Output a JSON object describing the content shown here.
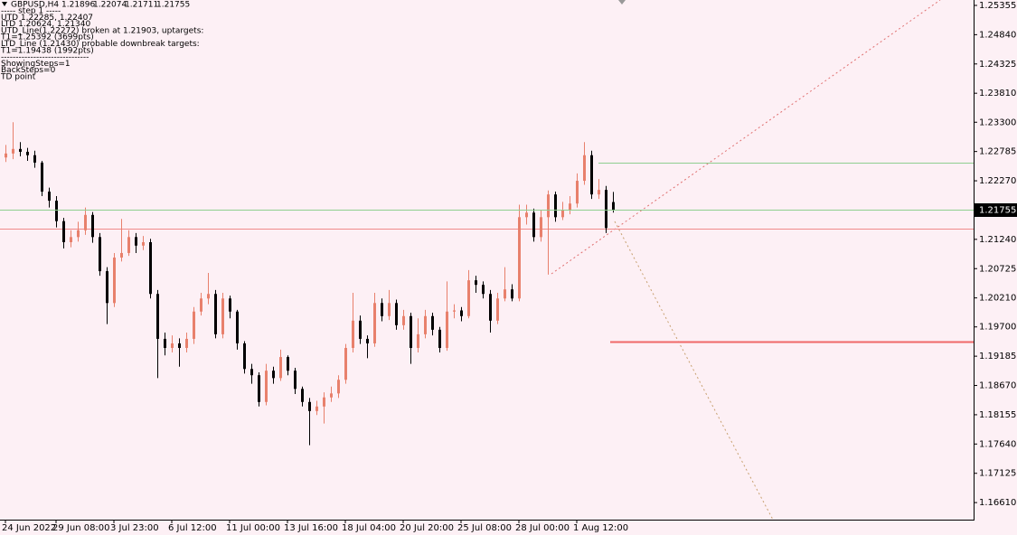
{
  "chart_data": {
    "type": "candlestick",
    "symbol": "GBPUSD,H4",
    "info_lines": [
      "----- step 1 -----",
      "UTD 1.22285, 1.22407",
      "LTD 1.20624, 1.21340",
      "UTD_Line(1.22272) broken at 1.21903, uptargets:",
      "T1=1.25392 (3699pts)",
      "LTD_Line (1.21430) probable downbreak targets:",
      "T1=1.19438 (1992pts)",
      "------------------------------",
      "ShowingSteps=1",
      "BackSteps=0",
      "TD point"
    ],
    "categories": [
      "24 Jun 2022",
      null,
      null,
      null,
      null,
      null,
      null,
      "29 Jun 08:00",
      null,
      null,
      null,
      null,
      null,
      null,
      null,
      "3 Jul 23:00",
      null,
      null,
      null,
      null,
      null,
      null,
      null,
      "6 Jul 12:00",
      null,
      null,
      null,
      null,
      null,
      null,
      null,
      "11 Jul 00:00",
      null,
      null,
      null,
      null,
      null,
      null,
      null,
      "13 Jul 16:00",
      null,
      null,
      null,
      null,
      null,
      null,
      null,
      "18 Jul 04:00",
      null,
      null,
      null,
      null,
      null,
      null,
      null,
      "20 Jul 20:00",
      null,
      null,
      null,
      null,
      null,
      null,
      null,
      "25 Jul 08:00",
      null,
      null,
      null,
      null,
      null,
      null,
      null,
      "28 Jul 00:00",
      null,
      null,
      null,
      null,
      null,
      null,
      null,
      "1 Aug 12:00",
      null,
      null,
      null,
      null,
      null
    ],
    "open": [
      1.2268,
      1.2275,
      1.2283,
      1.2278,
      1.2272,
      1.2259,
      1.2208,
      1.2192,
      1.2156,
      1.2119,
      1.2128,
      1.214,
      1.2167,
      1.2128,
      1.2068,
      1.2012,
      1.2092,
      1.21,
      1.2128,
      1.2113,
      1.2119,
      1.2028,
      1.1949,
      1.1933,
      1.1941,
      1.1933,
      1.1949,
      1.1997,
      1.202,
      1.2028,
      1.1957,
      1.202,
      1.1997,
      1.1941,
      1.1896,
      1.1885,
      1.1838,
      1.1893,
      1.188,
      1.1917,
      1.1893,
      1.1861,
      1.1838,
      1.1822,
      1.183,
      1.1846,
      1.1853,
      1.1877,
      1.1933,
      1.1981,
      1.1949,
      1.1941,
      1.2012,
      1.1989,
      1.2012,
      1.1973,
      1.1989,
      1.1933,
      1.1957,
      1.1989,
      1.1965,
      1.1933,
      1.1997,
      1.1999,
      1.1989,
      1.2052,
      1.2044,
      1.2028,
      1.1981,
      1.202,
      1.2036,
      1.202,
      1.2163,
      1.2171,
      1.2128,
      1.2163,
      1.2203,
      1.2163,
      1.2176,
      1.2187,
      1.2227,
      1.2272,
      1.2203,
      1.2211,
      1.21896
    ],
    "high": [
      1.229,
      1.233,
      1.2295,
      1.2285,
      1.228,
      1.2262,
      1.2215,
      1.22,
      1.2162,
      1.214,
      1.2155,
      1.218,
      1.2172,
      1.2135,
      1.2075,
      1.21,
      1.216,
      1.214,
      1.2135,
      1.213,
      1.2125,
      1.2035,
      1.196,
      1.1955,
      1.195,
      1.196,
      1.2005,
      1.203,
      1.2065,
      1.2035,
      1.203,
      1.2025,
      1.2,
      1.1945,
      1.1905,
      1.189,
      1.1905,
      1.19,
      1.193,
      1.192,
      1.1898,
      1.1865,
      1.1845,
      1.184,
      1.1855,
      1.1865,
      1.1885,
      1.194,
      1.203,
      1.199,
      1.1955,
      1.203,
      1.202,
      1.2035,
      1.2018,
      1.2,
      1.1995,
      1.1985,
      1.2,
      1.1995,
      1.197,
      1.205,
      1.201,
      1.2005,
      1.207,
      1.206,
      1.205,
      1.2035,
      1.203,
      1.2075,
      1.2045,
      1.2185,
      1.2185,
      1.2178,
      1.2175,
      1.221,
      1.2208,
      1.219,
      1.22,
      1.224,
      1.2295,
      1.228,
      1.223,
      1.2218,
      1.22074
    ],
    "low": [
      1.226,
      1.2265,
      1.227,
      1.2262,
      1.225,
      1.22,
      1.218,
      1.2145,
      1.2108,
      1.211,
      1.212,
      1.2132,
      1.2118,
      1.206,
      1.1975,
      1.2005,
      1.2085,
      1.2095,
      1.21,
      1.2105,
      1.202,
      1.188,
      1.192,
      1.1925,
      1.19,
      1.1925,
      1.194,
      1.199,
      1.201,
      1.195,
      1.195,
      1.1985,
      1.193,
      1.1888,
      1.187,
      1.183,
      1.1832,
      1.187,
      1.1875,
      1.1885,
      1.1852,
      1.183,
      1.1762,
      1.1815,
      1.18,
      1.1838,
      1.1845,
      1.187,
      1.1925,
      1.194,
      1.1915,
      1.1935,
      1.198,
      1.1982,
      1.1965,
      1.1965,
      1.1905,
      1.1925,
      1.195,
      1.1955,
      1.1925,
      1.1928,
      1.1985,
      1.198,
      1.1985,
      1.203,
      1.202,
      1.196,
      1.1975,
      1.2015,
      1.2015,
      1.2015,
      1.215,
      1.212,
      1.212,
      1.2062,
      1.2155,
      1.2158,
      1.2168,
      1.218,
      1.222,
      1.2195,
      1.2195,
      1.2135,
      1.21711
    ],
    "close": [
      1.2275,
      1.2283,
      1.2278,
      1.2272,
      1.2259,
      1.2208,
      1.2192,
      1.2156,
      1.2119,
      1.2128,
      1.214,
      1.2167,
      1.2128,
      1.2068,
      1.2012,
      1.2092,
      1.21,
      1.2128,
      1.2113,
      1.2119,
      1.2028,
      1.1949,
      1.1933,
      1.1941,
      1.1933,
      1.1949,
      1.1997,
      1.202,
      1.2028,
      1.1957,
      1.202,
      1.1997,
      1.1941,
      1.1896,
      1.1885,
      1.1838,
      1.1893,
      1.188,
      1.1917,
      1.1893,
      1.1861,
      1.1838,
      1.1822,
      1.183,
      1.1846,
      1.1853,
      1.1877,
      1.1933,
      1.1981,
      1.1949,
      1.1941,
      1.2012,
      1.1989,
      1.2012,
      1.1973,
      1.1989,
      1.1933,
      1.1957,
      1.1989,
      1.1965,
      1.1933,
      1.1997,
      1.1999,
      1.1989,
      1.2052,
      1.2044,
      1.2028,
      1.1981,
      1.202,
      1.2036,
      1.202,
      1.2163,
      1.2171,
      1.2128,
      1.2163,
      1.2203,
      1.2163,
      1.2176,
      1.2187,
      1.2227,
      1.2272,
      1.2203,
      1.2211,
      1.2144,
      1.21755
    ],
    "colors": {
      "up": "#e8806c",
      "down": "#000000",
      "bid": "#8fcf8f"
    },
    "levels": [
      {
        "value": 1.22589,
        "color": "#8fcf8f"
      },
      {
        "value": 1.2143,
        "color": "#f08a8a"
      },
      {
        "value": 1.19438,
        "color": "#f06868"
      }
    ],
    "ylim": [
      1.1631,
      1.2545
    ],
    "yticks": [
      1.25355,
      {
        "value": 1.2484,
        "label": "1.24840"
      },
      1.24325,
      {
        "value": 1.2381,
        "label": "1.23810"
      },
      {
        "value": 1.233,
        "label": "1.23300"
      },
      1.22785,
      {
        "value": 1.2227,
        "label": "1.22270"
      },
      {
        "value": 1.2124,
        "label": "1.21240"
      },
      1.20725,
      {
        "value": 1.2021,
        "label": "1.20210"
      },
      {
        "value": 1.197,
        "label": "1.19700"
      },
      1.19185,
      {
        "value": 1.1867,
        "label": "1.18670"
      },
      1.18155,
      {
        "value": 1.1764,
        "label": "1.17640"
      },
      1.17125,
      {
        "value": 1.1661,
        "label": "1.16610"
      }
    ],
    "grid": false
  }
}
